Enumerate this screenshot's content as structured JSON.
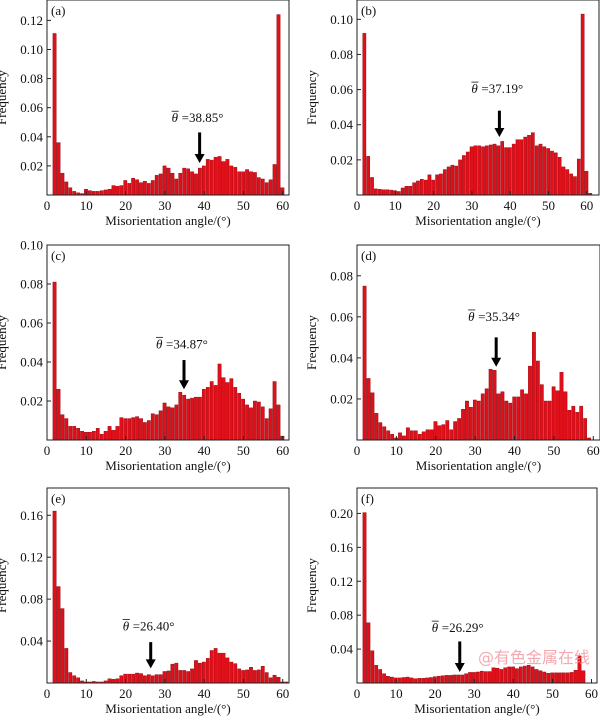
{
  "watermark": "@有色金属在线",
  "colors": {
    "bar": "#e0101a",
    "bar_edge": "#8a0008",
    "axis": "#222222",
    "arrow": "#000000"
  },
  "chart_data": [
    {
      "type": "bar",
      "panel": "(a)",
      "xlabel": "Misorientation angle/(°)",
      "ylabel": "Frequency",
      "xlim": [
        0,
        61.6
      ],
      "ylim": [
        0,
        0.134
      ],
      "xticks": [
        "0",
        "10",
        "20",
        "30",
        "40",
        "50",
        "60"
      ],
      "yticks": [
        "0.02",
        "0.04",
        "0.06",
        "0.08",
        "0.10",
        "0.12"
      ],
      "annotation": "=38.85°",
      "mean": 38.85,
      "arrow_tip": 0.022,
      "arrow_tail": 0.043,
      "label_y": 0.05,
      "x_start": 2,
      "values": [
        0.111,
        0.036,
        0.015,
        0.009,
        0.005,
        0.0025,
        0.0015,
        0.001,
        0.004,
        0.003,
        0.0025,
        0.0025,
        0.003,
        0.0035,
        0.004,
        0.0065,
        0.006,
        0.0065,
        0.01,
        0.008,
        0.0115,
        0.0105,
        0.0085,
        0.0095,
        0.008,
        0.01,
        0.0135,
        0.0145,
        0.02,
        0.0185,
        0.015,
        0.011,
        0.015,
        0.0185,
        0.018,
        0.016,
        0.0145,
        0.0185,
        0.02,
        0.0245,
        0.024,
        0.026,
        0.0265,
        0.023,
        0.0245,
        0.02,
        0.019,
        0.016,
        0.016,
        0.0175,
        0.016,
        0.0155,
        0.012,
        0.011,
        0.0085,
        0.0105,
        0.021,
        0.124,
        0.005
      ]
    },
    {
      "type": "bar",
      "panel": "(b)",
      "xlabel": "Misorientation angle/(°)",
      "ylabel": "Frequency",
      "xlim": [
        0,
        63.2
      ],
      "ylim": [
        0,
        0.111
      ],
      "xticks": [
        "0",
        "10",
        "20",
        "30",
        "40",
        "50",
        "60"
      ],
      "yticks": [
        "0.02",
        "0.04",
        "0.06",
        "0.08",
        "0.10"
      ],
      "annotation": "=37.19°",
      "mean": 37.19,
      "arrow_tip": 0.033,
      "arrow_tail": 0.048,
      "label_y": 0.058,
      "x_start": 2,
      "values": [
        0.092,
        0.022,
        0.01,
        0.0035,
        0.0033,
        0.003,
        0.003,
        0.0028,
        0.0025,
        0.002,
        0.004,
        0.005,
        0.005,
        0.007,
        0.008,
        0.009,
        0.0085,
        0.0115,
        0.0085,
        0.0115,
        0.012,
        0.0145,
        0.016,
        0.017,
        0.0165,
        0.02,
        0.0225,
        0.0245,
        0.0275,
        0.028,
        0.028,
        0.0275,
        0.028,
        0.0285,
        0.029,
        0.028,
        0.0305,
        0.027,
        0.027,
        0.029,
        0.0315,
        0.0315,
        0.033,
        0.034,
        0.0355,
        0.028,
        0.029,
        0.0275,
        0.0265,
        0.025,
        0.024,
        0.0215,
        0.016,
        0.0145,
        0.012,
        0.0105,
        0.0205,
        0.103,
        0.0135,
        0.001
      ]
    },
    {
      "type": "bar",
      "panel": "(c)",
      "xlabel": "Misorientation angle/(°)",
      "ylabel": "Frequency",
      "xlim": [
        0,
        61.6
      ],
      "ylim": [
        0,
        0.1
      ],
      "xticks": [
        "0",
        "10",
        "20",
        "30",
        "40",
        "50",
        "60"
      ],
      "yticks": [
        "0.02",
        "0.04",
        "0.06",
        "0.08",
        "0.10"
      ],
      "annotation": "=34.87°",
      "mean": 34.87,
      "arrow_tip": 0.026,
      "arrow_tail": 0.041,
      "label_y": 0.047,
      "x_start": 2,
      "values": [
        0.081,
        0.026,
        0.013,
        0.011,
        0.007,
        0.007,
        0.006,
        0.0045,
        0.004,
        0.004,
        0.0045,
        0.006,
        0.003,
        0.0045,
        0.007,
        0.005,
        0.007,
        0.0115,
        0.011,
        0.011,
        0.0115,
        0.012,
        0.011,
        0.009,
        0.01,
        0.0135,
        0.013,
        0.015,
        0.019,
        0.017,
        0.0165,
        0.018,
        0.0245,
        0.023,
        0.021,
        0.0215,
        0.022,
        0.022,
        0.026,
        0.027,
        0.03,
        0.028,
        0.039,
        0.032,
        0.0295,
        0.0315,
        0.027,
        0.024,
        0.021,
        0.018,
        0.0165,
        0.02,
        0.0195,
        0.017,
        0.011,
        0.016,
        0.03,
        0.018,
        0.002
      ]
    },
    {
      "type": "bar",
      "panel": "(d)",
      "xlabel": "Misorientation angle/(°)",
      "ylabel": "Frequency",
      "xlim": [
        0,
        61.7
      ],
      "ylim": [
        0,
        0.095
      ],
      "xticks": [
        "0",
        "10",
        "20",
        "30",
        "40",
        "50",
        "60"
      ],
      "yticks": [
        "0.02",
        "0.04",
        "0.06",
        "0.08"
      ],
      "annotation": "=35.34°",
      "mean": 35.34,
      "arrow_tip": 0.0357,
      "arrow_tail": 0.05,
      "label_y": 0.058,
      "x_start": 2,
      "values": [
        0.075,
        0.03,
        0.023,
        0.013,
        0.0085,
        0.0065,
        0.0045,
        0.0028,
        0.001,
        0.0035,
        0.002,
        0.006,
        0.0045,
        0.0045,
        0.0028,
        0.004,
        0.005,
        0.005,
        0.009,
        0.007,
        0.0075,
        0.0095,
        0.005,
        0.009,
        0.0105,
        0.015,
        0.019,
        0.016,
        0.0195,
        0.019,
        0.0225,
        0.025,
        0.0345,
        0.034,
        0.0225,
        0.0235,
        0.019,
        0.018,
        0.021,
        0.021,
        0.0245,
        0.0225,
        0.036,
        0.0525,
        0.0385,
        0.027,
        0.019,
        0.019,
        0.026,
        0.024,
        0.033,
        0.0235,
        0.0145,
        0.0165,
        0.0135,
        0.0165,
        0.0105,
        0.001
      ]
    },
    {
      "type": "bar",
      "panel": "(e)",
      "xlabel": "Misorientation angle/(°)",
      "ylabel": "Frequency",
      "xlim": [
        0,
        61.6
      ],
      "ylim": [
        0,
        0.186
      ],
      "xticks": [
        "0",
        "10",
        "20",
        "30",
        "40",
        "50",
        "60"
      ],
      "yticks": [
        "0.04",
        "0.08",
        "0.12",
        "0.16"
      ],
      "annotation": "=26.40°",
      "mean": 26.4,
      "arrow_tip": 0.014,
      "arrow_tail": 0.039,
      "label_y": 0.05,
      "x_start": 2,
      "values": [
        0.164,
        0.092,
        0.071,
        0.033,
        0.01,
        0.007,
        0.005,
        0.002,
        0.001,
        0.001,
        0.0015,
        0.001,
        0.001,
        0.002,
        0.004,
        0.0035,
        0.004,
        0.007,
        0.0085,
        0.0085,
        0.0085,
        0.0095,
        0.009,
        0.007,
        0.008,
        0.007,
        0.008,
        0.008,
        0.011,
        0.0115,
        0.018,
        0.019,
        0.012,
        0.012,
        0.011,
        0.0135,
        0.0215,
        0.019,
        0.02,
        0.0235,
        0.031,
        0.033,
        0.0285,
        0.0285,
        0.024,
        0.02,
        0.0185,
        0.0135,
        0.012,
        0.0125,
        0.015,
        0.012,
        0.0125,
        0.016,
        0.01,
        0.005,
        0.0075,
        0.0055,
        0.001,
        0.001
      ]
    },
    {
      "type": "bar",
      "panel": "(f)",
      "xlabel": "Misorientation angle/(°)",
      "ylabel": "Frequency",
      "xlim": [
        0,
        61.4
      ],
      "ylim": [
        0,
        0.23
      ],
      "xticks": [
        "0",
        "10",
        "20",
        "30",
        "40",
        "50",
        "60"
      ],
      "yticks": [
        "0.04",
        "0.08",
        "0.12",
        "0.16",
        "0.20"
      ],
      "annotation": "=26.29°",
      "mean": 26.29,
      "arrow_tip": 0.013,
      "arrow_tail": 0.049,
      "label_y": 0.06,
      "x_start": 2,
      "values": [
        0.201,
        0.071,
        0.038,
        0.021,
        0.016,
        0.011,
        0.008,
        0.007,
        0.006,
        0.006,
        0.0065,
        0.007,
        0.006,
        0.005,
        0.0055,
        0.0055,
        0.006,
        0.0065,
        0.0075,
        0.008,
        0.0085,
        0.009,
        0.009,
        0.0095,
        0.0095,
        0.0095,
        0.011,
        0.0125,
        0.0125,
        0.013,
        0.014,
        0.0135,
        0.0135,
        0.018,
        0.0175,
        0.016,
        0.018,
        0.019,
        0.019,
        0.017,
        0.019,
        0.02,
        0.021,
        0.019,
        0.016,
        0.0145,
        0.013,
        0.0115,
        0.012,
        0.012,
        0.012,
        0.012,
        0.012,
        0.0125,
        0.015,
        0.032,
        0.0145
      ]
    }
  ]
}
